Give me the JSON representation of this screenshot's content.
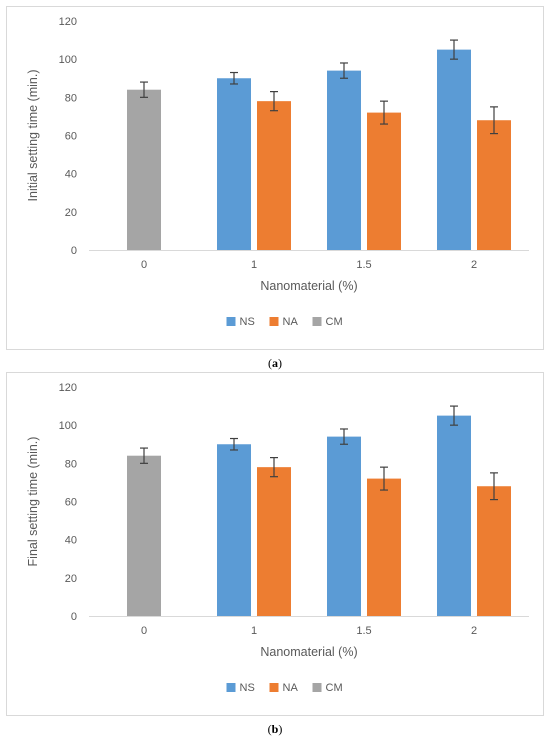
{
  "chart_data": [
    {
      "type": "bar",
      "panel_label": "a",
      "categories": [
        "0",
        "1",
        "1.5",
        "2"
      ],
      "series": [
        {
          "name": "NS",
          "color": "#5b9bd5",
          "values": [
            null,
            90,
            94,
            105
          ],
          "errors": [
            null,
            3,
            4,
            5
          ]
        },
        {
          "name": "NA",
          "color": "#ed7d31",
          "values": [
            null,
            78,
            72,
            68
          ],
          "errors": [
            null,
            5,
            6,
            7
          ]
        },
        {
          "name": "CM",
          "color": "#a5a5a5",
          "values": [
            84,
            null,
            null,
            null
          ],
          "errors": [
            4,
            null,
            null,
            null
          ]
        }
      ],
      "xlabel": "Nanomaterial (%)",
      "ylabel": "Initial setting time (min.)",
      "ylim": [
        0,
        120
      ],
      "yticks": [
        "0",
        "20",
        "40",
        "60",
        "80",
        "100",
        "120"
      ],
      "grid": false,
      "legend": "bottom"
    },
    {
      "type": "bar",
      "panel_label": "b",
      "categories": [
        "0",
        "1",
        "1.5",
        "2"
      ],
      "series": [
        {
          "name": "NS",
          "color": "#5b9bd5",
          "values": [
            null,
            90,
            94,
            105
          ],
          "errors": [
            null,
            3,
            4,
            5
          ]
        },
        {
          "name": "NA",
          "color": "#ed7d31",
          "values": [
            null,
            78,
            72,
            68
          ],
          "errors": [
            null,
            5,
            6,
            7
          ]
        },
        {
          "name": "CM",
          "color": "#a5a5a5",
          "values": [
            84,
            null,
            null,
            null
          ],
          "errors": [
            4,
            null,
            null,
            null
          ]
        }
      ],
      "xlabel": "Nanomaterial (%)",
      "ylabel": "Final setting time (min.)",
      "ylim": [
        0,
        120
      ],
      "yticks": [
        "0",
        "20",
        "40",
        "60",
        "80",
        "100",
        "120"
      ],
      "grid": false,
      "legend": "bottom"
    }
  ]
}
